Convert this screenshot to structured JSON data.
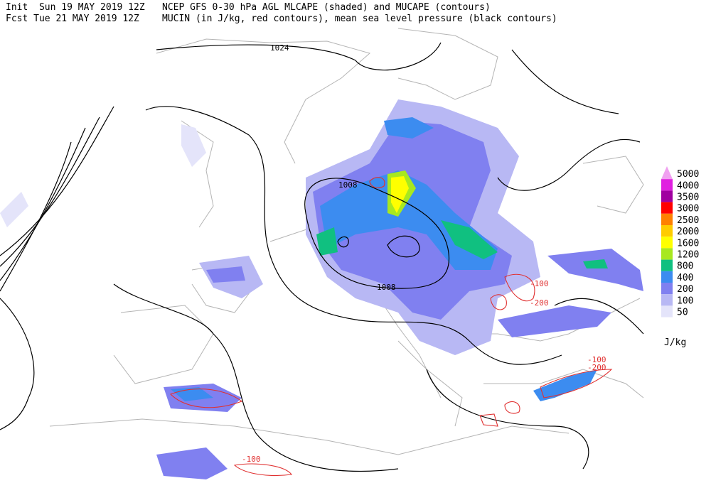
{
  "header": {
    "init_date": "Init  Sun 19 MAY 2019 12Z",
    "fcst_date": "Fcst Tue 21 MAY 2019 12Z",
    "line1": "NCEP GFS 0-30 hPa AGL MLCAPE (shaded) and MUCAPE (contours)",
    "line2": "MUCIN (in J/kg, red contours), mean sea level pressure (black contours)"
  },
  "contour_labels": {
    "pressure": [
      1024,
      1008,
      1008
    ],
    "mucin": [
      -100,
      -200,
      -100,
      -200,
      -100
    ]
  },
  "legend": {
    "unit": "J/kg",
    "levels": [
      {
        "value": 5000,
        "color": "#f0a0f0"
      },
      {
        "value": 4000,
        "color": "#e020e0"
      },
      {
        "value": 3500,
        "color": "#a000a0"
      },
      {
        "value": 3000,
        "color": "#ff0000"
      },
      {
        "value": 2500,
        "color": "#ff8000"
      },
      {
        "value": 2000,
        "color": "#ffcc00"
      },
      {
        "value": 1600,
        "color": "#ffff00"
      },
      {
        "value": 1200,
        "color": "#a8e820"
      },
      {
        "value": 800,
        "color": "#10c080"
      },
      {
        "value": 400,
        "color": "#3c8cf0"
      },
      {
        "value": 200,
        "color": "#8080f0"
      },
      {
        "value": 100,
        "color": "#b8b8f4"
      },
      {
        "value": 50,
        "color": "#e4e4fa"
      }
    ]
  }
}
